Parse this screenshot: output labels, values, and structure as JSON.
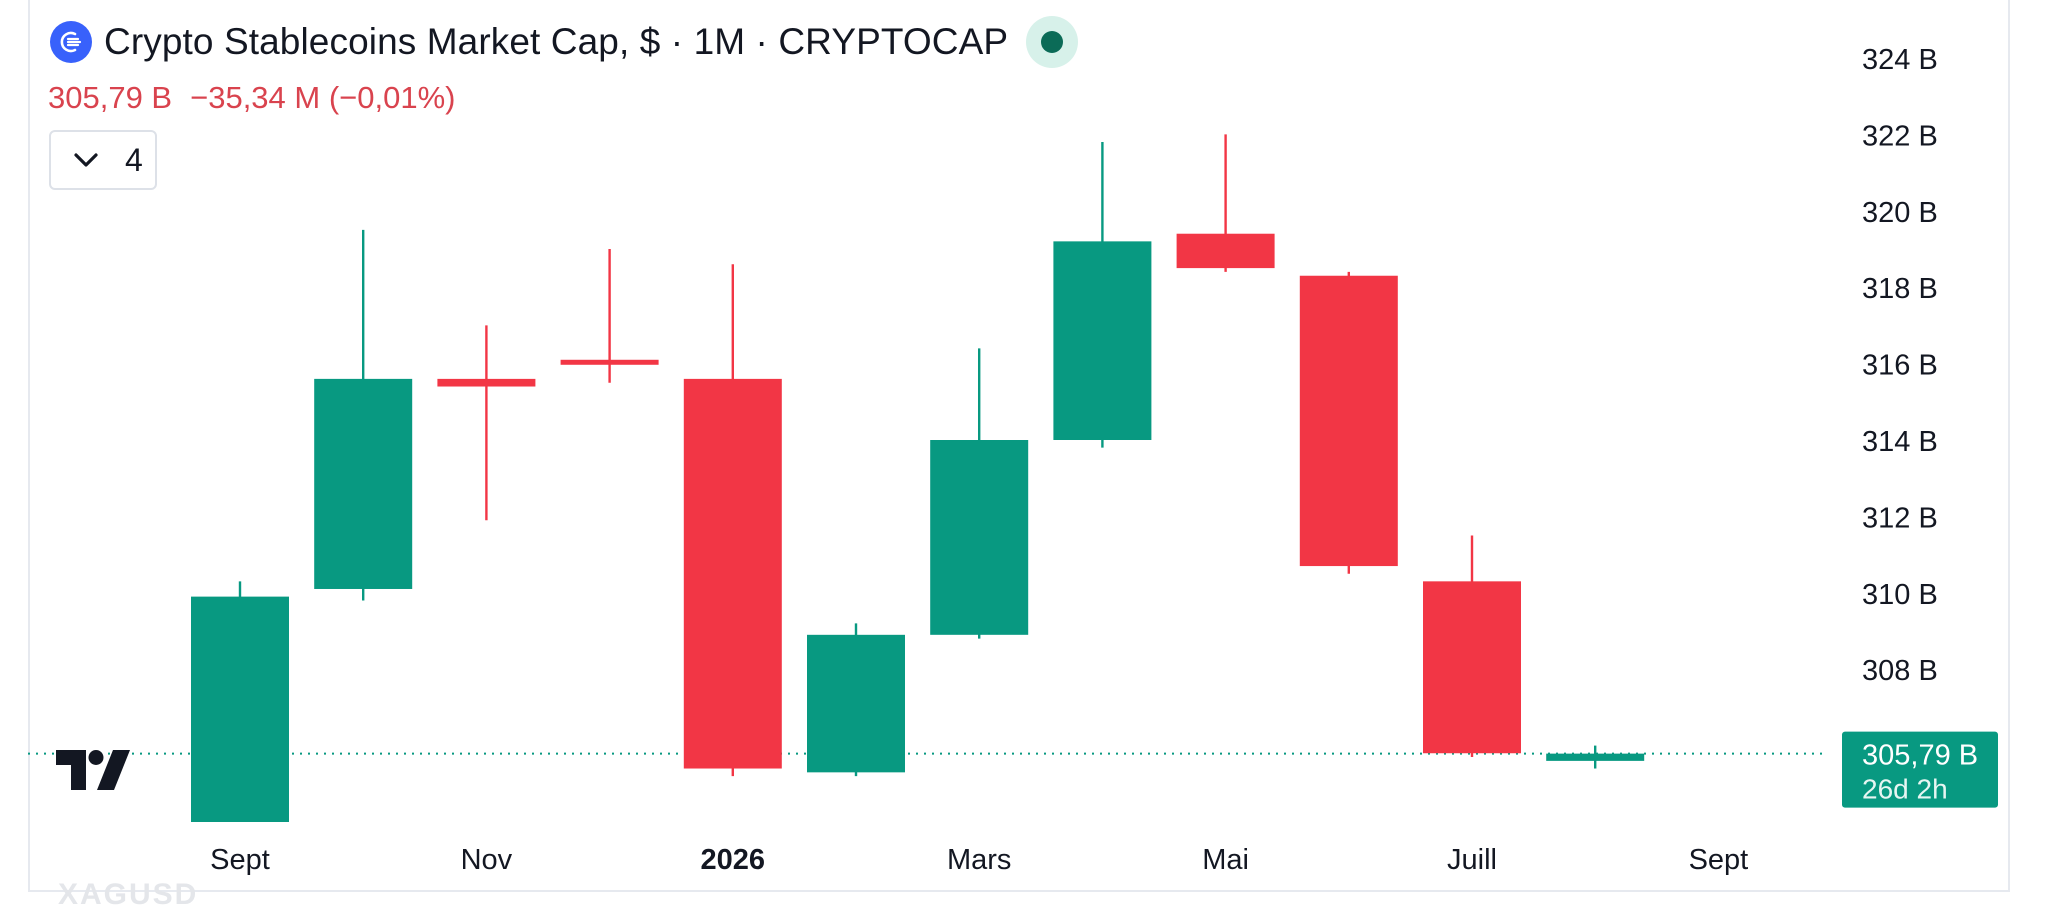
{
  "header": {
    "title": "Crypto Stablecoins Market Cap, $ · 1M · CRYPTOCAP",
    "last_value": "305,79 B",
    "change": "−35,34 M (−0,01%)",
    "indicators_count": "4",
    "symbol_icon": "stablecoin-logo-icon",
    "status": "market-open"
  },
  "watermark": "XAGUSD",
  "colors": {
    "up": "#089981",
    "down": "#f23645",
    "text": "#131722",
    "price_label_bg": "#089981",
    "accent": "#3861fb"
  },
  "chart_data": {
    "type": "candlestick",
    "title": "Crypto Stablecoins Market Cap, $ · 1M · CRYPTOCAP",
    "interval": "1M",
    "unit": "B",
    "y_range": [
      305.0,
      324.5
    ],
    "y_ticks": [
      308,
      310,
      312,
      314,
      316,
      318,
      320,
      322,
      324
    ],
    "y_tick_labels": [
      "308 B",
      "310 B",
      "312 B",
      "314 B",
      "316 B",
      "318 B",
      "320 B",
      "322 B",
      "324 B"
    ],
    "x_tick_labels": [
      {
        "label": "Sept",
        "index": 0,
        "bold": false
      },
      {
        "label": "Nov",
        "index": 2,
        "bold": false
      },
      {
        "label": "2026",
        "index": 4,
        "bold": true
      },
      {
        "label": "Mars",
        "index": 6,
        "bold": false
      },
      {
        "label": "Mai",
        "index": 8,
        "bold": false
      },
      {
        "label": "Juill",
        "index": 10,
        "bold": false
      },
      {
        "label": "Sept",
        "index": 12,
        "bold": false
      }
    ],
    "candles": [
      {
        "open": 304.0,
        "high": 310.3,
        "low": 304.0,
        "close": 309.9
      },
      {
        "open": 310.1,
        "high": 319.5,
        "low": 309.8,
        "close": 315.6
      },
      {
        "open": 315.6,
        "high": 317.0,
        "low": 311.9,
        "close": 315.4
      },
      {
        "open": 316.1,
        "high": 319.0,
        "low": 315.5,
        "close": 316.0
      },
      {
        "open": 315.6,
        "high": 318.6,
        "low": 305.2,
        "close": 305.4
      },
      {
        "open": 305.3,
        "high": 309.2,
        "low": 305.2,
        "close": 308.9
      },
      {
        "open": 308.9,
        "high": 316.4,
        "low": 308.8,
        "close": 314.0
      },
      {
        "open": 314.0,
        "high": 321.8,
        "low": 313.8,
        "close": 319.2
      },
      {
        "open": 319.4,
        "high": 322.0,
        "low": 318.4,
        "close": 318.5
      },
      {
        "open": 318.3,
        "high": 318.4,
        "low": 310.5,
        "close": 310.7
      },
      {
        "open": 310.3,
        "high": 311.5,
        "low": 305.7,
        "close": 305.8
      },
      {
        "open": 305.6,
        "high": 306.0,
        "low": 305.4,
        "close": 305.79
      }
    ],
    "last_price": 305.79,
    "last_price_label": "305,79 B",
    "countdown_label": "26d 2h",
    "grid": false
  }
}
